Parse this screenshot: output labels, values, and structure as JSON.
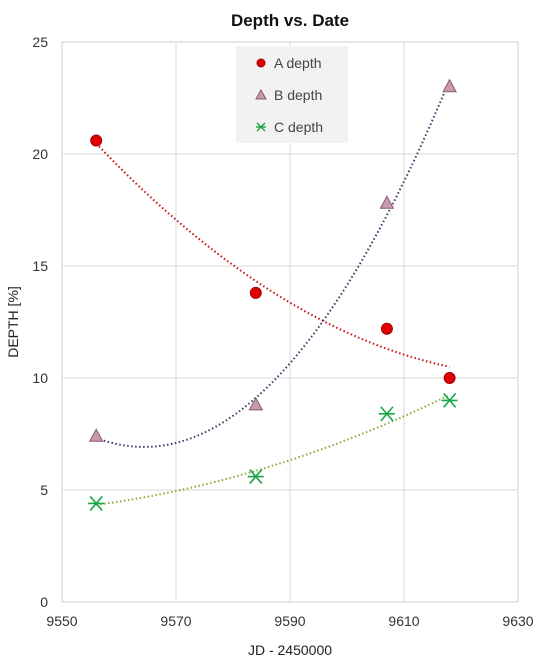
{
  "chart_data": {
    "type": "scatter",
    "title": "Depth vs. Date",
    "xlabel": "JD - 2450000",
    "ylabel": "DEPTH [%]",
    "xlim": [
      9550,
      9630
    ],
    "ylim": [
      0,
      25
    ],
    "xticks": [
      9550,
      9570,
      9590,
      9610,
      9630
    ],
    "yticks": [
      0,
      5,
      10,
      15,
      20,
      25
    ],
    "grid": true,
    "legend_position": "top-center",
    "series": [
      {
        "name": "A depth",
        "marker": "circle",
        "color": "#e00000",
        "trend_color": "#cc1111",
        "x": [
          9556,
          9584,
          9607,
          9618
        ],
        "y": [
          20.6,
          13.8,
          12.2,
          10.0
        ]
      },
      {
        "name": "B depth",
        "marker": "triangle",
        "color": "#c89ab0",
        "trend_color": "#3a3a6a",
        "x": [
          9556,
          9584,
          9607,
          9618
        ],
        "y": [
          7.4,
          8.8,
          17.8,
          23.0
        ]
      },
      {
        "name": "C depth",
        "marker": "star",
        "color": "#17a547",
        "trend_color": "#8aaa3a",
        "x": [
          9556,
          9584,
          9607,
          9618
        ],
        "y": [
          4.4,
          5.6,
          8.4,
          9.0
        ]
      }
    ]
  }
}
